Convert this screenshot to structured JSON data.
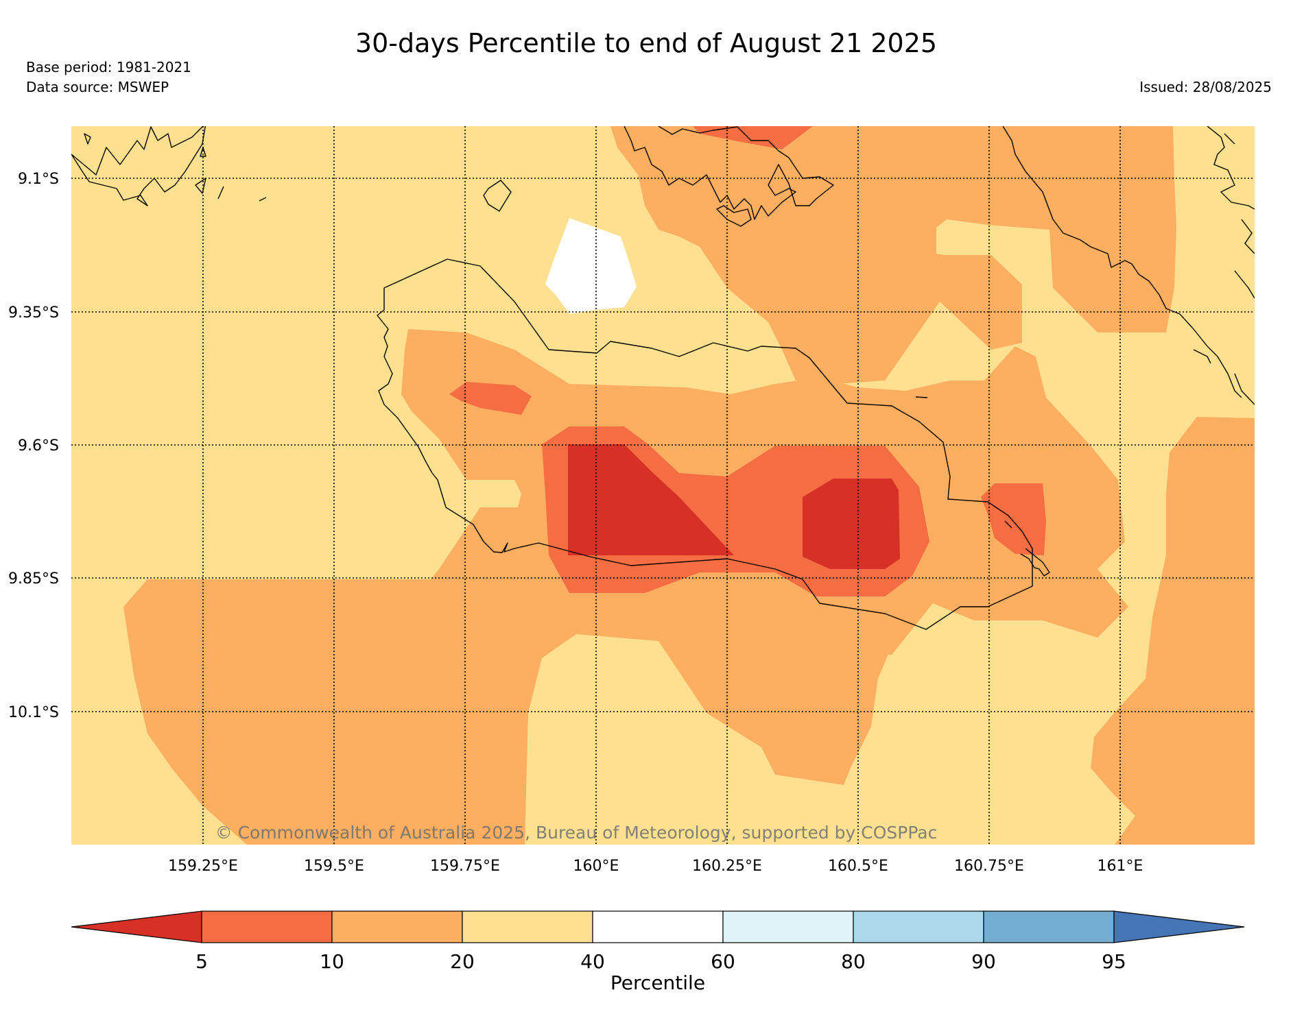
{
  "title": "30-days Percentile to end of August 21 2025",
  "base_period": "Base period: 1981-2021",
  "data_source": "Data source: MSWEP",
  "issued": "Issued: 28/08/2025",
  "copyright": "© Commonwealth of Australia 2025, Bureau of Meteorology, supported by COSPPac",
  "map": {
    "lon_ticks": [
      "159.25°E",
      "159.5°E",
      "159.75°E",
      "160°E",
      "160.25°E",
      "160.5°E",
      "160.75°E",
      "161°E"
    ],
    "lat_ticks": [
      "9.1°S",
      "9.35°S",
      "9.6°S",
      "9.85°S",
      "10.1°S"
    ]
  },
  "colorbar": {
    "label": "Percentile",
    "ticks": [
      "5",
      "10",
      "20",
      "40",
      "60",
      "80",
      "90",
      "95"
    ],
    "colors": [
      "#d73027",
      "#f46d43",
      "#fdae61",
      "#fee090",
      "#ffffff",
      "#e0f3f8",
      "#abd9e9",
      "#74add1",
      "#4575b4"
    ]
  },
  "legend_classes": {
    "below_5": "#d73027",
    "5_10": "#f46d43",
    "10_20": "#fdae61",
    "20_40": "#fee090",
    "40_60": "#ffffff"
  }
}
